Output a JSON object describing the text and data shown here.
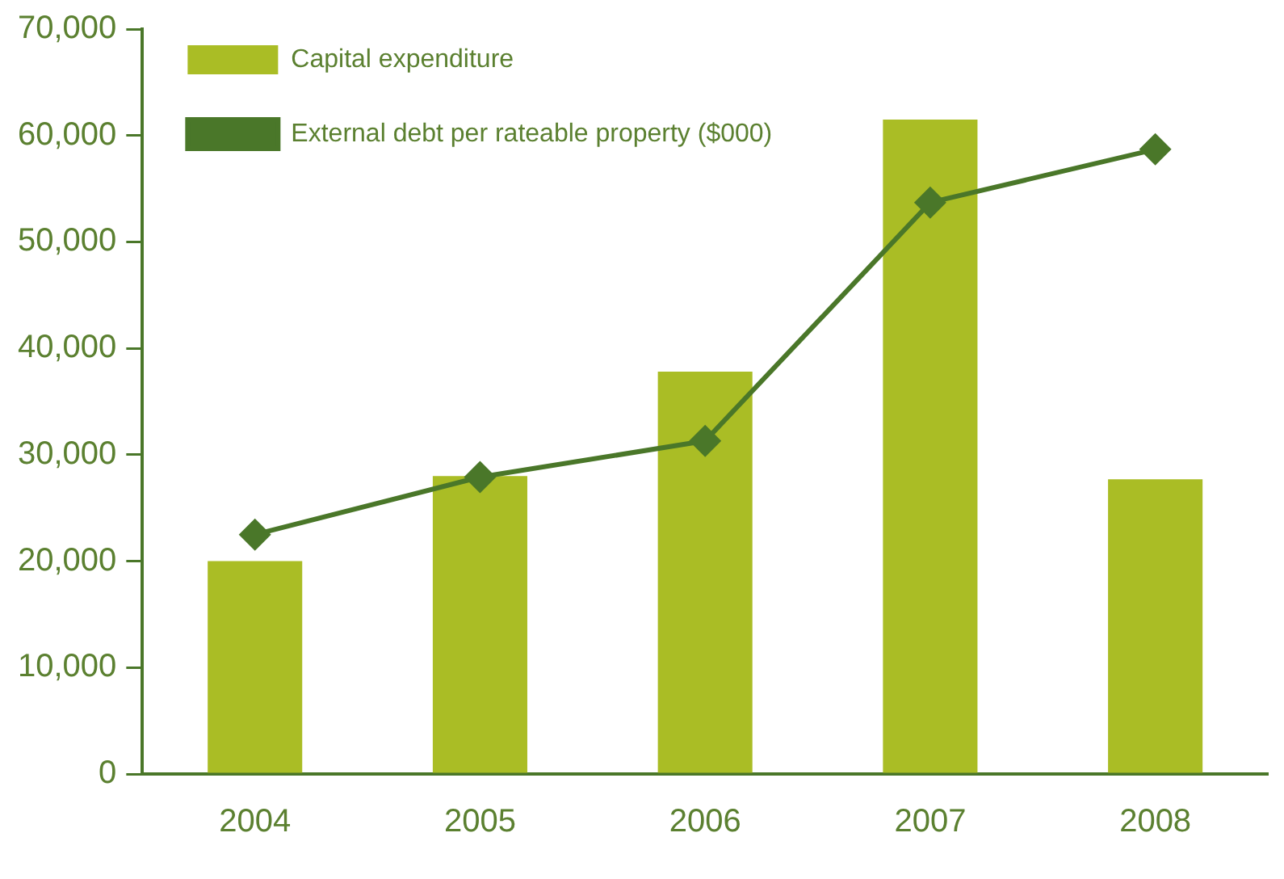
{
  "chart_data": {
    "type": "bar",
    "categories": [
      "2004",
      "2005",
      "2006",
      "2007",
      "2008"
    ],
    "series": [
      {
        "name": "Capital expenditure",
        "color": "#aabd25",
        "values": [
          20000,
          28000,
          37800,
          61500,
          27700
        ]
      },
      {
        "name": "External debt per rateable property ($000)",
        "type": "line",
        "color": "#4a7729",
        "values": [
          22500,
          27900,
          31300,
          53700,
          58700
        ]
      }
    ],
    "ylim": [
      0,
      70000
    ],
    "yticks": [
      0,
      {
        "value": 10000,
        "label": "10,000"
      },
      {
        "value": 20000,
        "label": "20,000"
      },
      {
        "value": 30000,
        "label": "30,000"
      },
      {
        "value": 40000,
        "label": "40,000"
      },
      {
        "value": 50000,
        "label": "50,000"
      },
      {
        "value": 60000,
        "label": "60,000"
      },
      {
        "value": 70000,
        "label": "70,000"
      }
    ],
    "grid": false,
    "legend": "top left",
    "marker": "diamond",
    "line_style": "solid"
  }
}
